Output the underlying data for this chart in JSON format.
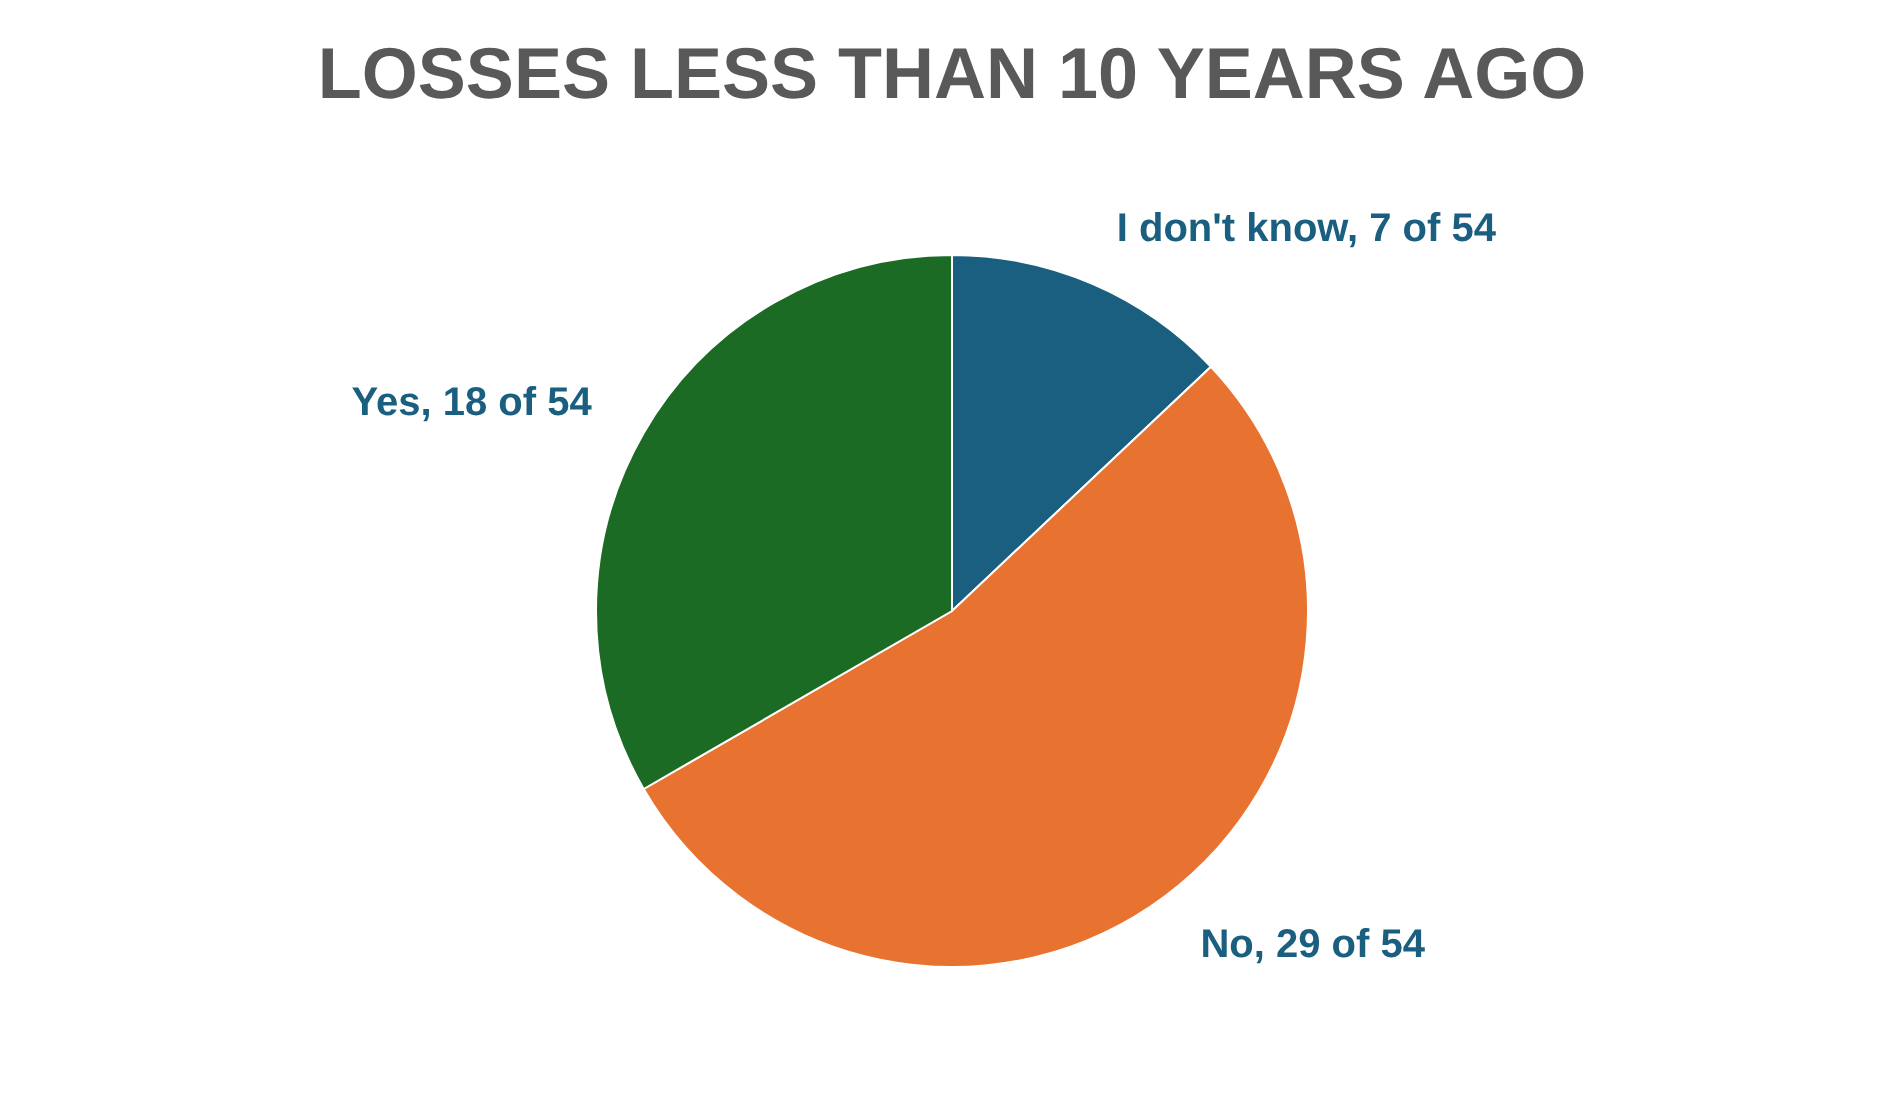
{
  "chart_data": {
    "type": "pie",
    "title": "LOSSES LESS THAN 10 YEARS AGO",
    "categories": [
      "I don't know",
      "No",
      "Yes"
    ],
    "values": [
      7,
      29,
      18
    ],
    "colors": [
      "#1a5f80",
      "#e87331",
      "#1c6b24"
    ],
    "value_labels": [
      "7 of 54",
      "29 of 54",
      "18 of 54"
    ],
    "legend": false
  }
}
